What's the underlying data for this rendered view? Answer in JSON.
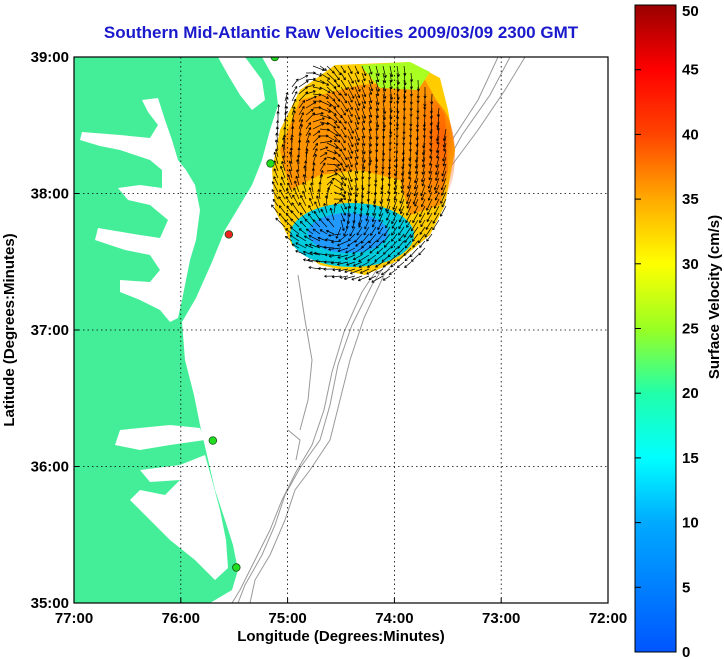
{
  "title": "Southern Mid-Atlantic Raw Velocities 2009/03/09 2300 GMT",
  "axes": {
    "xlabel": "Longitude (Degrees:Minutes)",
    "ylabel": "Latitude (Degrees:Minutes)",
    "x_ticks": [
      "77:00",
      "76:00",
      "75:00",
      "74:00",
      "73:00",
      "72:00"
    ],
    "y_ticks": [
      "39:00",
      "38:00",
      "37:00",
      "36:00",
      "35:00"
    ],
    "xlim": [
      -77,
      -72
    ],
    "ylim": [
      35,
      39
    ],
    "grid": "dotted"
  },
  "colorbar": {
    "label": "Surface Velocity (cm/s)",
    "ticks": [
      "50",
      "45",
      "40",
      "35",
      "30",
      "25",
      "20",
      "15",
      "10",
      "5",
      "0"
    ],
    "range": [
      0,
      50
    ],
    "colormap": "jet"
  },
  "colors": {
    "land": "#44ee99",
    "water": "#ffffff",
    "bathymetry": "#999999",
    "title": "#1a1acc",
    "arrows": "#000000"
  },
  "stations": [
    {
      "lon": -75.12,
      "lat": 39.0,
      "status": "active"
    },
    {
      "lon": -75.16,
      "lat": 38.22,
      "status": "active"
    },
    {
      "lon": -75.55,
      "lat": 37.7,
      "status": "offline"
    },
    {
      "lon": -75.7,
      "lat": 36.19,
      "status": "active"
    },
    {
      "lon": -75.48,
      "lat": 35.26,
      "status": "active"
    }
  ],
  "chart_data": {
    "type": "vector_field",
    "field_center": [
      -74.4,
      37.85
    ],
    "eddy_center": [
      -74.5,
      37.73
    ],
    "speed_range": [
      2,
      48
    ],
    "units": "cm/s"
  }
}
